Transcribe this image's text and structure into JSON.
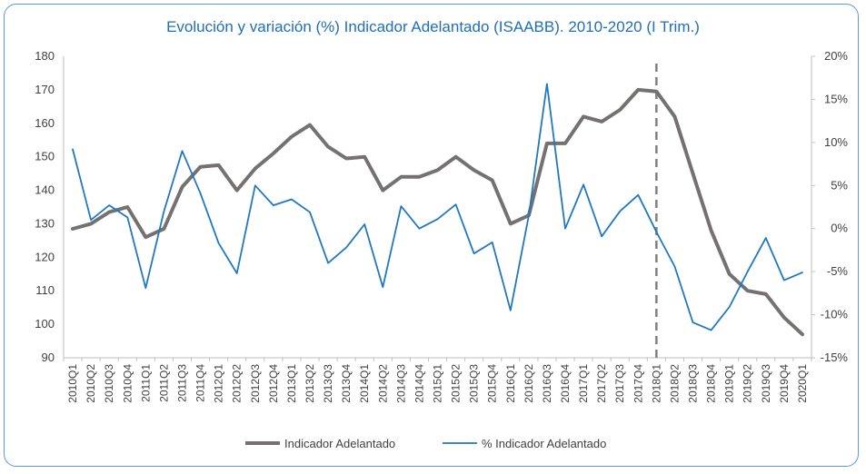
{
  "chart_data": {
    "type": "line",
    "title": "Evolución y variación (%) Indicador Adelantado (ISAABB). 2010-2020 (I Trim.)",
    "categories": [
      "2010Q1",
      "2010Q2",
      "2010Q3",
      "2010Q4",
      "2011Q1",
      "2011Q2",
      "2011Q3",
      "2011Q4",
      "2012Q1",
      "2012Q2",
      "2012Q3",
      "2012Q4",
      "2013Q1",
      "2013Q2",
      "2013Q3",
      "2013Q4",
      "2014Q1",
      "2014Q2",
      "2014Q3",
      "2014Q4",
      "2015Q1",
      "2015Q2",
      "2015Q3",
      "2015Q4",
      "2016Q1",
      "2016Q2",
      "2016Q3",
      "2016Q4",
      "2017Q1",
      "2017Q2",
      "2017Q3",
      "2017Q4",
      "2018Q1",
      "2018Q2",
      "2018Q3",
      "2018Q4",
      "2019Q1",
      "2019Q2",
      "2019Q3",
      "2019Q4",
      "2020Q1"
    ],
    "y_left": {
      "min": 90,
      "max": 180,
      "step": 10,
      "ticks": [
        "90",
        "100",
        "110",
        "120",
        "130",
        "140",
        "150",
        "160",
        "170",
        "180"
      ]
    },
    "y_right": {
      "min": -15,
      "max": 20,
      "step": 5,
      "ticks": [
        "-15%",
        "-10%",
        "-5%",
        "0%",
        "5%",
        "10%",
        "15%",
        "20%"
      ]
    },
    "series": [
      {
        "name": "Indicador Adelantado",
        "axis": "left",
        "color": "#767171",
        "values": [
          128.5,
          130,
          133.5,
          135,
          126,
          128.5,
          141,
          147,
          147.5,
          140,
          146.5,
          151,
          156,
          159.5,
          153,
          149.5,
          150,
          140,
          144,
          144,
          146,
          150,
          146,
          143,
          130,
          132.5,
          154,
          154,
          162,
          160.5,
          164,
          170,
          169.5,
          162,
          145,
          128,
          115,
          110,
          109,
          102,
          97
        ]
      },
      {
        "name": "% Indicador Adelantado",
        "axis": "right",
        "color": "#1f78c1",
        "values": [
          9.2,
          1,
          2.7,
          1.3,
          -6.9,
          2,
          9,
          4.1,
          -1.7,
          -5.2,
          5,
          2.7,
          3.4,
          1.9,
          -4,
          -2.2,
          0.5,
          -6.8,
          2.6,
          0,
          1.1,
          2.8,
          -2.9,
          -1.6,
          -9.5,
          1.5,
          16.8,
          0,
          5.1,
          -0.9,
          2,
          3.9,
          -0.4,
          -4.4,
          -10.9,
          -11.8,
          -9.1,
          -5,
          -1.1,
          -6,
          -5.1
        ]
      }
    ],
    "annotations": [
      {
        "type": "vertical-dashed-line",
        "at": "2018Q1"
      }
    ],
    "grid": false,
    "legend": "bottom"
  }
}
